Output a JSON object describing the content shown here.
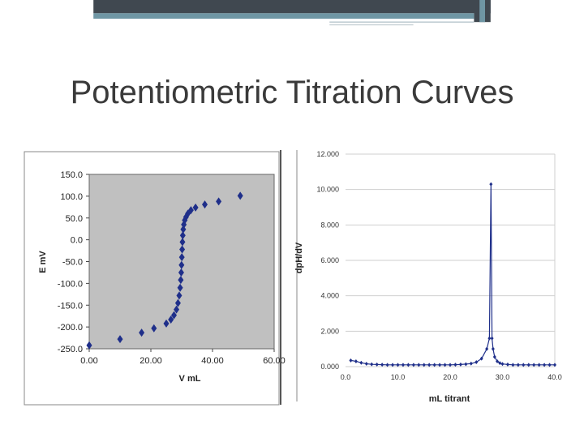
{
  "slide": {
    "title": "Potentiometric Titration Curves"
  },
  "colors": {
    "series": "#1f2f8a",
    "plot_bg": "#c0c0c0",
    "bar_dark": "#404850",
    "bar_accent": "#6f96a4"
  },
  "chart_data": [
    {
      "type": "scatter",
      "xlabel": "V mL",
      "ylabel": "E mV",
      "xlim": [
        0,
        60
      ],
      "ylim": [
        -250,
        150
      ],
      "xticks": [
        "0.00",
        "20.00",
        "40.00",
        "60.00"
      ],
      "yticks": [
        "150.0",
        "100.0",
        "50.0",
        "0.0",
        "-50.0",
        "-100.0",
        "-150.0",
        "-200.0",
        "-250.0"
      ],
      "grid": false,
      "series": [
        {
          "x": [
            0,
            10,
            17,
            21,
            25,
            26.5,
            27.5,
            28.3,
            28.8,
            29.2,
            29.5,
            29.7,
            29.85,
            29.95,
            30.05,
            30.15,
            30.25,
            30.35,
            30.5,
            30.7,
            31.0,
            31.4,
            32.0,
            33.0,
            34.5,
            37.5,
            42.0,
            49.0
          ],
          "y": [
            -242,
            -228,
            -213,
            -203,
            -192,
            -183,
            -173,
            -160,
            -145,
            -128,
            -110,
            -92,
            -75,
            -58,
            -40,
            -22,
            -5,
            10,
            24,
            35,
            45,
            52,
            60,
            68,
            74,
            81,
            88,
            101
          ]
        }
      ]
    },
    {
      "type": "line",
      "xlabel": "mL titrant",
      "ylabel": "dpH/dV",
      "xlim": [
        0,
        40
      ],
      "ylim": [
        0,
        12
      ],
      "xticks": [
        "0.0",
        "10.0",
        "20.0",
        "30.0",
        "40.0"
      ],
      "yticks": [
        "12.000",
        "10.000",
        "8.000",
        "6.000",
        "4.000",
        "2.000",
        "0.000"
      ],
      "grid": true,
      "series": [
        {
          "x": [
            1,
            2,
            3,
            4,
            5,
            6,
            7,
            8,
            9,
            10,
            11,
            12,
            13,
            14,
            15,
            16,
            17,
            18,
            19,
            20,
            21,
            22,
            23,
            24,
            25,
            26,
            27,
            27.5,
            27.8,
            28.0,
            28.2,
            28.5,
            29,
            29.5,
            30,
            31,
            32,
            33,
            34,
            35,
            36,
            37,
            38,
            39,
            40
          ],
          "y": [
            0.35,
            0.3,
            0.22,
            0.16,
            0.13,
            0.12,
            0.11,
            0.1,
            0.1,
            0.1,
            0.1,
            0.1,
            0.1,
            0.1,
            0.1,
            0.1,
            0.1,
            0.1,
            0.1,
            0.1,
            0.11,
            0.12,
            0.14,
            0.17,
            0.25,
            0.45,
            1.0,
            1.6,
            10.3,
            1.6,
            1.0,
            0.55,
            0.3,
            0.2,
            0.15,
            0.12,
            0.1,
            0.1,
            0.1,
            0.1,
            0.1,
            0.1,
            0.1,
            0.1,
            0.1
          ]
        }
      ]
    }
  ]
}
